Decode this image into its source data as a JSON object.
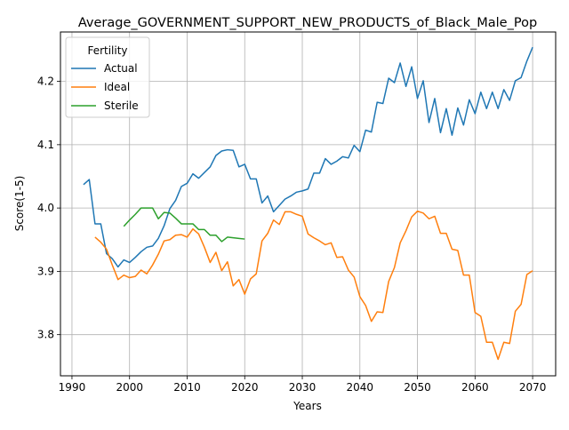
{
  "chart_data": {
    "type": "line",
    "title": "Average_GOVERNMENT_SUPPORT_NEW_PRODUCTS_of_Black_Male_Pop",
    "xlabel": "Years",
    "ylabel": "Score(1-5)",
    "xlim": [
      1988,
      2074
    ],
    "ylim": [
      3.735,
      4.278
    ],
    "xticks": [
      1990,
      2000,
      2010,
      2020,
      2030,
      2040,
      2050,
      2060,
      2070
    ],
    "yticks": [
      3.8,
      3.9,
      4.0,
      4.1,
      4.2
    ],
    "grid": true,
    "legend": {
      "title": "Fertility",
      "placement": "top-left"
    },
    "series": [
      {
        "name": "Actual",
        "color": "#1f77b4",
        "x": [
          1992,
          1993,
          1994,
          1995,
          1996,
          1997,
          1998,
          1999,
          2000,
          2001,
          2002,
          2003,
          2004,
          2005,
          2006,
          2007,
          2008,
          2009,
          2010,
          2011,
          2012,
          2013,
          2014,
          2015,
          2016,
          2017,
          2018,
          2019,
          2020,
          2021,
          2022,
          2023,
          2024,
          2025,
          2026,
          2027,
          2028,
          2029,
          2030,
          2031,
          2032,
          2033,
          2034,
          2035,
          2036,
          2037,
          2038,
          2039,
          2040,
          2041,
          2042,
          2043,
          2044,
          2045,
          2046,
          2047,
          2048,
          2049,
          2050,
          2051,
          2052,
          2053,
          2054,
          2055,
          2056,
          2057,
          2058,
          2059,
          2060,
          2061,
          2062,
          2063,
          2064,
          2065,
          2066,
          2067,
          2068,
          2069,
          2070
        ],
        "y": [
          4.037,
          4.045,
          3.975,
          3.975,
          3.928,
          3.92,
          3.907,
          3.918,
          3.914,
          3.922,
          3.931,
          3.938,
          3.94,
          3.952,
          3.972,
          3.999,
          4.012,
          4.034,
          4.039,
          4.054,
          4.047,
          4.056,
          4.065,
          4.083,
          4.09,
          4.092,
          4.091,
          4.065,
          4.069,
          4.046,
          4.046,
          4.008,
          4.019,
          3.994,
          4.004,
          4.014,
          4.019,
          4.025,
          4.027,
          4.03,
          4.055,
          4.055,
          4.078,
          4.069,
          4.074,
          4.081,
          4.079,
          4.099,
          4.089,
          4.123,
          4.12,
          4.167,
          4.165,
          4.205,
          4.198,
          4.229,
          4.192,
          4.223,
          4.173,
          4.201,
          4.135,
          4.173,
          4.119,
          4.157,
          4.115,
          4.158,
          4.131,
          4.171,
          4.149,
          4.183,
          4.157,
          4.183,
          4.157,
          4.187,
          4.17,
          4.201,
          4.206,
          4.232,
          4.254
        ]
      },
      {
        "name": "Ideal",
        "color": "#ff7f0e",
        "x": [
          1994,
          1995,
          1996,
          1997,
          1998,
          1999,
          2000,
          2001,
          2002,
          2003,
          2004,
          2005,
          2006,
          2007,
          2008,
          2009,
          2010,
          2011,
          2012,
          2013,
          2014,
          2015,
          2016,
          2017,
          2018,
          2019,
          2020,
          2021,
          2022,
          2023,
          2024,
          2025,
          2026,
          2027,
          2028,
          2029,
          2030,
          2031,
          2032,
          2033,
          2034,
          2035,
          2036,
          2037,
          2038,
          2039,
          2040,
          2041,
          2042,
          2043,
          2044,
          2045,
          2046,
          2047,
          2048,
          2049,
          2050,
          2051,
          2052,
          2053,
          2054,
          2055,
          2056,
          2057,
          2058,
          2059,
          2060,
          2061,
          2062,
          2063,
          2064,
          2065,
          2066,
          2067,
          2068,
          2069,
          2070
        ],
        "y": [
          3.954,
          3.946,
          3.935,
          3.91,
          3.887,
          3.894,
          3.89,
          3.892,
          3.902,
          3.896,
          3.91,
          3.927,
          3.948,
          3.95,
          3.957,
          3.958,
          3.954,
          3.967,
          3.959,
          3.938,
          3.914,
          3.93,
          3.901,
          3.915,
          3.877,
          3.887,
          3.864,
          3.888,
          3.896,
          3.948,
          3.96,
          3.981,
          3.974,
          3.994,
          3.994,
          3.99,
          3.987,
          3.959,
          3.953,
          3.948,
          3.942,
          3.945,
          3.922,
          3.923,
          3.902,
          3.891,
          3.86,
          3.846,
          3.821,
          3.836,
          3.835,
          3.884,
          3.906,
          3.945,
          3.964,
          3.986,
          3.995,
          3.992,
          3.983,
          3.987,
          3.96,
          3.96,
          3.935,
          3.933,
          3.894,
          3.894,
          3.835,
          3.829,
          3.788,
          3.788,
          3.761,
          3.788,
          3.786,
          3.837,
          3.848,
          3.895,
          3.901
        ]
      },
      {
        "name": "Sterile",
        "color": "#2ca02c",
        "x": [
          1999,
          2000,
          2001,
          2002,
          2003,
          2004,
          2005,
          2006,
          2007,
          2008,
          2009,
          2010,
          2011,
          2012,
          2013,
          2014,
          2015,
          2016,
          2017,
          2018,
          2019,
          2020
        ],
        "y": [
          3.971,
          3.981,
          3.99,
          4.0,
          4.0,
          4.0,
          3.983,
          3.993,
          3.992,
          3.984,
          3.975,
          3.975,
          3.975,
          3.966,
          3.966,
          3.957,
          3.957,
          3.947,
          3.954,
          3.953,
          3.952,
          3.951
        ]
      }
    ]
  }
}
